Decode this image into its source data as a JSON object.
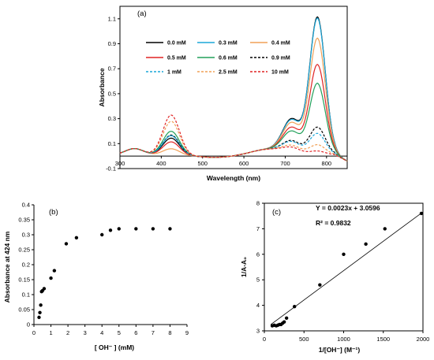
{
  "chart_data": [
    {
      "type": "line",
      "panel": "(a)",
      "xlabel": "Wavelength (nm)",
      "ylabel": "Absorbance",
      "xlim": [
        300,
        850
      ],
      "ylim": [
        -0.1,
        1.2
      ],
      "xticks": [
        300,
        400,
        500,
        600,
        700,
        800
      ],
      "yticks": [
        -0.1,
        0.1,
        0.3,
        0.5,
        0.7,
        0.9,
        1.1
      ],
      "ytick_labels": [
        "-0.1",
        "0.1",
        "0.3",
        "0.5",
        "0.7",
        "0.9",
        "1.1"
      ],
      "legend_placement": "top-left inside",
      "series": [
        {
          "name": "0.0 mM",
          "color": "#000000",
          "dash": "solid",
          "p424": 0.145,
          "p720": 0.36,
          "p778": 1.1,
          "shoulder_offset": 0.0
        },
        {
          "name": "0.3 mM",
          "color": "#1aa7d9",
          "dash": "solid",
          "p424": 0.165,
          "p720": 0.35,
          "p778": 1.09,
          "shoulder_offset": 0.0
        },
        {
          "name": "0.4 mM",
          "color": "#f0a057",
          "dash": "solid",
          "p424": 0.06,
          "p720": 0.32,
          "p778": 0.93,
          "shoulder_offset": 0.0
        },
        {
          "name": "0.5 mM",
          "color": "#e02424",
          "dash": "solid",
          "p424": 0.115,
          "p720": 0.27,
          "p778": 0.72,
          "shoulder_offset": 0.0
        },
        {
          "name": "0.6 mM",
          "color": "#22a05a",
          "dash": "solid",
          "p424": 0.2,
          "p720": 0.23,
          "p778": 0.57,
          "shoulder_offset": 0.0
        },
        {
          "name": "0.9 mM",
          "color": "#000000",
          "dash": "dashed",
          "p424": 0.17,
          "p720": 0.13,
          "p778": 0.22,
          "shoulder_offset": 0.0
        },
        {
          "name": "1 mM",
          "color": "#1aa7d9",
          "dash": "dashed",
          "p424": 0.165,
          "p720": 0.12,
          "p778": 0.17,
          "shoulder_offset": 0.0
        },
        {
          "name": "2.5 mM",
          "color": "#f0a057",
          "dash": "dashed",
          "p424": 0.28,
          "p720": 0.08,
          "p778": 0.08,
          "shoulder_offset": 0.0
        },
        {
          "name": "10 mM",
          "color": "#e02424",
          "dash": "dashed",
          "p424": 0.33,
          "p720": 0.06,
          "p778": 0.03,
          "shoulder_offset": 0.0
        }
      ]
    },
    {
      "type": "scatter",
      "panel": "(b)",
      "xlabel": "[ OH⁻ ] (mM)",
      "ylabel": "Absorbance at 424 nm",
      "xlim": [
        0,
        9
      ],
      "ylim": [
        0,
        0.4
      ],
      "xticks": [
        0,
        1,
        2,
        3,
        4,
        5,
        6,
        7,
        8,
        9
      ],
      "yticks": [
        0,
        0.05,
        0.1,
        0.15,
        0.2,
        0.25,
        0.3,
        0.35,
        0.4
      ],
      "ytick_labels": [
        "0",
        "0.05",
        "0.1",
        "0.15",
        "0.2",
        "0.25",
        "0.3",
        "0.35",
        "0.4"
      ],
      "x": [
        0.3,
        0.35,
        0.4,
        0.45,
        0.5,
        0.6,
        1.0,
        1.2,
        1.9,
        2.5,
        4.0,
        4.5,
        5.0,
        6.0,
        7.0,
        8.0
      ],
      "y": [
        0.024,
        0.04,
        0.065,
        0.11,
        0.113,
        0.12,
        0.155,
        0.18,
        0.27,
        0.29,
        0.3,
        0.315,
        0.32,
        0.32,
        0.32,
        0.32
      ]
    },
    {
      "type": "scatter",
      "panel": "(c)",
      "xlabel": "1/[OH⁻] (M⁻¹)",
      "ylabel": "1/A-A₀",
      "xlim": [
        0,
        2000
      ],
      "ylim": [
        3,
        8
      ],
      "xticks": [
        0,
        500,
        1000,
        1500,
        2000
      ],
      "yticks": [
        3,
        4,
        5,
        6,
        7,
        8
      ],
      "ytick_labels": [
        "3",
        "4",
        "5",
        "6",
        "7",
        "8"
      ],
      "equation": "Y = 0.0023x + 3.0596",
      "r2": "R² = 0.9832",
      "fit": {
        "slope": 0.0023,
        "intercept": 3.0596
      },
      "x": [
        100,
        125,
        150,
        170,
        190,
        210,
        230,
        250,
        280,
        380,
        700,
        1000,
        1280,
        1520,
        1980
      ],
      "y": [
        3.2,
        3.22,
        3.2,
        3.22,
        3.25,
        3.25,
        3.3,
        3.35,
        3.5,
        3.95,
        4.8,
        6.0,
        6.4,
        7.0,
        7.6
      ]
    }
  ]
}
